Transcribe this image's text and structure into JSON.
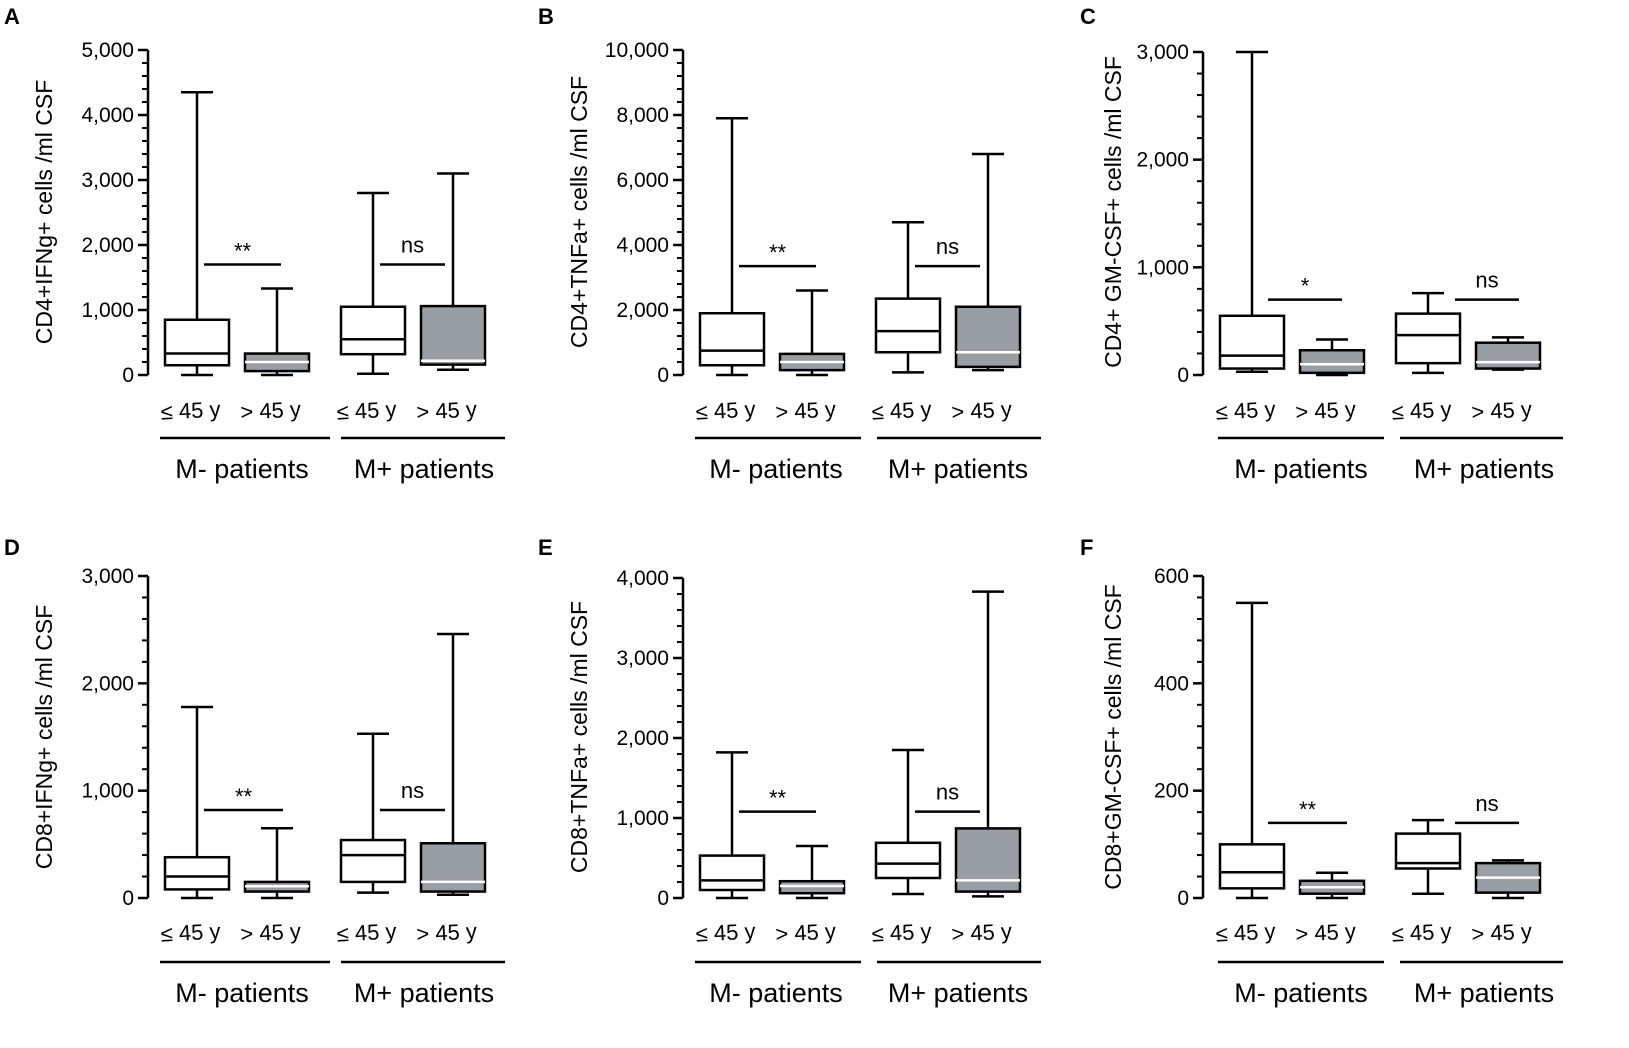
{
  "chart_data": [
    {
      "panel": "A",
      "type": "boxplot",
      "ylabel": "CD4+IFNg+ cells /ml CSF",
      "ylim": [
        0,
        5000
      ],
      "yticks": [
        0,
        1000,
        2000,
        3000,
        4000,
        5000
      ],
      "ytick_labels": [
        "0",
        "1,000",
        "2,000",
        "3,000",
        "4,000",
        "5,000"
      ],
      "categories": [
        "≤ 45 y",
        "> 45 y",
        "≤ 45 y",
        "> 45 y"
      ],
      "groups": [
        "M- patients",
        "M+ patients"
      ],
      "boxes": [
        {
          "group": "M- patients",
          "age": "≤ 45 y",
          "min": 0,
          "q1": 150,
          "median": 330,
          "q3": 850,
          "max": 4350,
          "fill": "#ffffff"
        },
        {
          "group": "M- patients",
          "age": "> 45 y",
          "min": 0,
          "q1": 60,
          "median": 200,
          "q3": 330,
          "max": 1330,
          "fill": "#999ea4"
        },
        {
          "group": "M+ patients",
          "age": "≤ 45 y",
          "min": 20,
          "q1": 320,
          "median": 550,
          "q3": 1050,
          "max": 2800,
          "fill": "#ffffff"
        },
        {
          "group": "M+ patients",
          "age": "> 45 y",
          "min": 80,
          "q1": 160,
          "median": 220,
          "q3": 1060,
          "max": 3100,
          "fill": "#999ea4"
        }
      ],
      "significance": [
        {
          "group": "M- patients",
          "label": "**",
          "y": 1700
        },
        {
          "group": "M+ patients",
          "label": "ns",
          "y": 1700
        }
      ]
    },
    {
      "panel": "B",
      "type": "boxplot",
      "ylabel": "CD4+TNFa+ cells /ml CSF",
      "ylim": [
        0,
        10000
      ],
      "yticks": [
        0,
        2000,
        4000,
        6000,
        8000,
        10000
      ],
      "ytick_labels": [
        "0",
        "2,000",
        "4,000",
        "6,000",
        "8,000",
        "10,000"
      ],
      "categories": [
        "≤ 45 y",
        "> 45 y",
        "≤ 45 y",
        "> 45 y"
      ],
      "groups": [
        "M- patients",
        "M+ patients"
      ],
      "boxes": [
        {
          "group": "M- patients",
          "age": "≤ 45 y",
          "min": 0,
          "q1": 300,
          "median": 750,
          "q3": 1900,
          "max": 7900,
          "fill": "#ffffff"
        },
        {
          "group": "M- patients",
          "age": "> 45 y",
          "min": 0,
          "q1": 150,
          "median": 400,
          "q3": 650,
          "max": 2600,
          "fill": "#999ea4"
        },
        {
          "group": "M+ patients",
          "age": "≤ 45 y",
          "min": 80,
          "q1": 700,
          "median": 1350,
          "q3": 2350,
          "max": 4700,
          "fill": "#ffffff"
        },
        {
          "group": "M+ patients",
          "age": "> 45 y",
          "min": 150,
          "q1": 250,
          "median": 700,
          "q3": 2100,
          "max": 6800,
          "fill": "#999ea4"
        }
      ],
      "significance": [
        {
          "group": "M- patients",
          "label": "**",
          "y": 3350
        },
        {
          "group": "M+ patients",
          "label": "ns",
          "y": 3350
        }
      ]
    },
    {
      "panel": "C",
      "type": "boxplot",
      "ylabel": "CD4+ GM-CSF+ cells /ml CSF",
      "ylim": [
        0,
        3000
      ],
      "yticks": [
        0,
        1000,
        2000,
        3000
      ],
      "ytick_labels": [
        "0",
        "1,000",
        "2,000",
        "3,000"
      ],
      "categories": [
        "≤ 45 y",
        "> 45 y",
        "≤ 45 y",
        "> 45 y"
      ],
      "groups": [
        "M- patients",
        "M+ patients"
      ],
      "boxes": [
        {
          "group": "M- patients",
          "age": "≤ 45 y",
          "min": 30,
          "q1": 60,
          "median": 180,
          "q3": 550,
          "max": 3000,
          "fill": "#ffffff"
        },
        {
          "group": "M- patients",
          "age": "> 45 y",
          "min": 0,
          "q1": 20,
          "median": 100,
          "q3": 230,
          "max": 330,
          "fill": "#999ea4"
        },
        {
          "group": "M+ patients",
          "age": "≤ 45 y",
          "min": 20,
          "q1": 110,
          "median": 370,
          "q3": 570,
          "max": 760,
          "fill": "#ffffff"
        },
        {
          "group": "M+ patients",
          "age": "> 45 y",
          "min": 50,
          "q1": 60,
          "median": 120,
          "q3": 300,
          "max": 350,
          "fill": "#999ea4"
        }
      ],
      "significance": [
        {
          "group": "M- patients",
          "label": "*",
          "y": 700
        },
        {
          "group": "M+ patients",
          "label": "ns",
          "y": 700
        }
      ]
    },
    {
      "panel": "D",
      "type": "boxplot",
      "ylabel": "CD8+IFNg+ cells /ml CSF",
      "ylim": [
        0,
        3000
      ],
      "yticks": [
        0,
        1000,
        2000,
        3000
      ],
      "ytick_labels": [
        "0",
        "1,000",
        "2,000",
        "3,000"
      ],
      "categories": [
        "≤ 45 y",
        "> 45 y",
        "≤ 45 y",
        "> 45 y"
      ],
      "groups": [
        "M- patients",
        "M+ patients"
      ],
      "boxes": [
        {
          "group": "M- patients",
          "age": "≤ 45 y",
          "min": 0,
          "q1": 80,
          "median": 200,
          "q3": 380,
          "max": 1780,
          "fill": "#ffffff"
        },
        {
          "group": "M- patients",
          "age": "> 45 y",
          "min": 0,
          "q1": 60,
          "median": 110,
          "q3": 150,
          "max": 650,
          "fill": "#999ea4"
        },
        {
          "group": "M+ patients",
          "age": "≤ 45 y",
          "min": 50,
          "q1": 150,
          "median": 400,
          "q3": 540,
          "max": 1530,
          "fill": "#ffffff"
        },
        {
          "group": "M+ patients",
          "age": "> 45 y",
          "min": 30,
          "q1": 60,
          "median": 150,
          "q3": 510,
          "max": 2460,
          "fill": "#999ea4"
        }
      ],
      "significance": [
        {
          "group": "M- patients",
          "label": "**",
          "y": 820
        },
        {
          "group": "M+ patients",
          "label": "ns",
          "y": 820
        }
      ]
    },
    {
      "panel": "E",
      "type": "boxplot",
      "ylabel": "CD8+TNFa+ cells /ml CSF",
      "ylim": [
        0,
        4000
      ],
      "yticks": [
        0,
        1000,
        2000,
        3000,
        4000
      ],
      "ytick_labels": [
        "0",
        "1,000",
        "2,000",
        "3,000",
        "4,000"
      ],
      "categories": [
        "≤ 45 y",
        "> 45 y",
        "≤ 45 y",
        "> 45 y"
      ],
      "groups": [
        "M- patients",
        "M+ patients"
      ],
      "boxes": [
        {
          "group": "M- patients",
          "age": "≤ 45 y",
          "min": 0,
          "q1": 100,
          "median": 220,
          "q3": 530,
          "max": 1820,
          "fill": "#ffffff"
        },
        {
          "group": "M- patients",
          "age": "> 45 y",
          "min": 0,
          "q1": 60,
          "median": 150,
          "q3": 210,
          "max": 650,
          "fill": "#999ea4"
        },
        {
          "group": "M+ patients",
          "age": "≤ 45 y",
          "min": 50,
          "q1": 250,
          "median": 430,
          "q3": 690,
          "max": 1850,
          "fill": "#ffffff"
        },
        {
          "group": "M+ patients",
          "age": "> 45 y",
          "min": 20,
          "q1": 80,
          "median": 220,
          "q3": 870,
          "max": 3830,
          "fill": "#999ea4"
        }
      ],
      "significance": [
        {
          "group": "M- patients",
          "label": "**",
          "y": 1080
        },
        {
          "group": "M+ patients",
          "label": "ns",
          "y": 1080
        }
      ]
    },
    {
      "panel": "F",
      "type": "boxplot",
      "ylabel": "CD8+GM-CSF+ cells /ml CSF",
      "ylim": [
        0,
        600
      ],
      "yticks": [
        0,
        200,
        400,
        600
      ],
      "ytick_labels": [
        "0",
        "200",
        "400",
        "600"
      ],
      "categories": [
        "≤ 45 y",
        "> 45 y",
        "≤ 45 y",
        "> 45 y"
      ],
      "groups": [
        "M- patients",
        "M+ patients"
      ],
      "boxes": [
        {
          "group": "M- patients",
          "age": "≤ 45 y",
          "min": 0,
          "q1": 18,
          "median": 48,
          "q3": 100,
          "max": 550,
          "fill": "#ffffff"
        },
        {
          "group": "M- patients",
          "age": "> 45 y",
          "min": 0,
          "q1": 8,
          "median": 20,
          "q3": 32,
          "max": 47,
          "fill": "#999ea4"
        },
        {
          "group": "M+ patients",
          "age": "≤ 45 y",
          "min": 8,
          "q1": 55,
          "median": 65,
          "q3": 120,
          "max": 145,
          "fill": "#ffffff"
        },
        {
          "group": "M+ patients",
          "age": "> 45 y",
          "min": 0,
          "q1": 10,
          "median": 38,
          "q3": 65,
          "max": 70,
          "fill": "#999ea4"
        }
      ],
      "significance": [
        {
          "group": "M- patients",
          "label": "**",
          "y": 140
        },
        {
          "group": "M+ patients",
          "label": "ns",
          "y": 140
        }
      ]
    }
  ]
}
